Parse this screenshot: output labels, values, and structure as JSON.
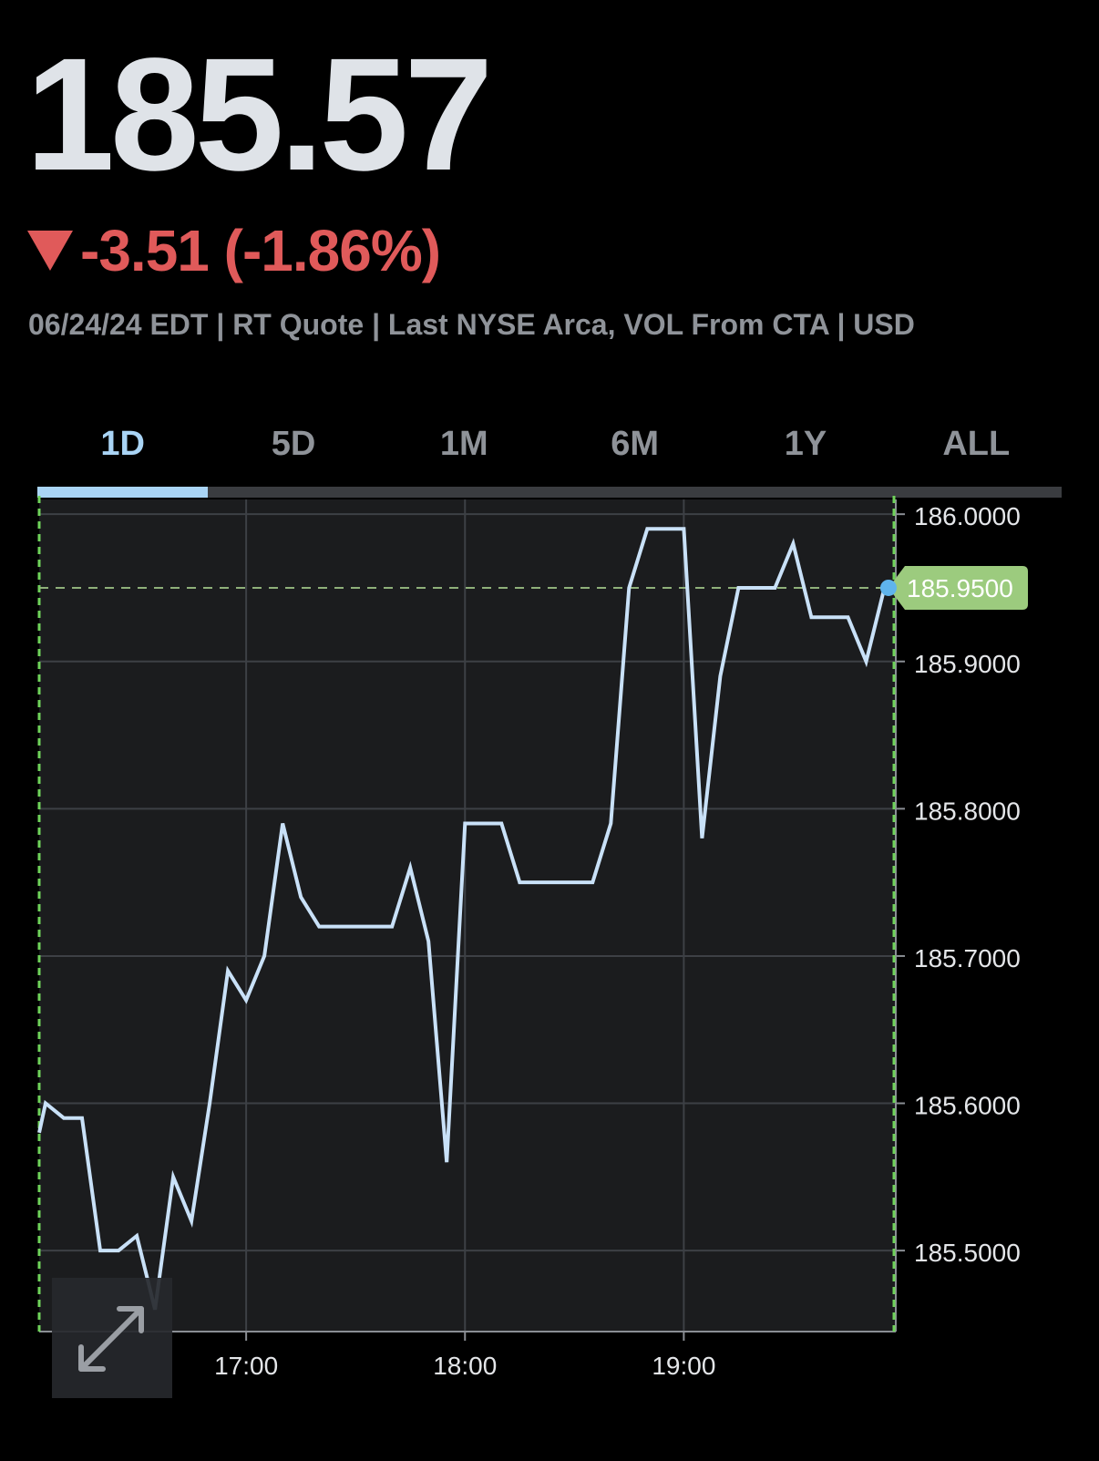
{
  "quote": {
    "price": "185.57",
    "change": "-3.51 (-1.86%)",
    "meta": "06/24/24 EDT | RT Quote | Last NYSE Arca, VOL From CTA | USD"
  },
  "tabs": [
    {
      "label": "1D",
      "active": true
    },
    {
      "label": "5D",
      "active": false
    },
    {
      "label": "1M",
      "active": false
    },
    {
      "label": "6M",
      "active": false
    },
    {
      "label": "1Y",
      "active": false
    },
    {
      "label": "ALL",
      "active": false
    }
  ],
  "colors": {
    "line": "#c9e1f8",
    "down": "#e05a5a",
    "tab_active": "#a9d4f5",
    "last_price_badge": "#9ccb7e",
    "range_marker": "#6fd35a"
  },
  "expand_icon": "expand-arrows-icon",
  "chart_data": {
    "type": "line",
    "last_price": 185.95,
    "last_price_label": "185.9500",
    "ylim": [
      185.445,
      186.01
    ],
    "y_ticks": [
      186.0,
      185.9,
      185.8,
      185.7,
      185.6,
      185.5
    ],
    "y_tick_labels": [
      "186.0000",
      "185.9000",
      "185.8000",
      "185.7000",
      "185.6000",
      "185.5000"
    ],
    "x_range_minutes": [
      16.0541,
      19.9688
    ],
    "x_ticks": [
      17,
      18,
      19
    ],
    "x_tick_labels": [
      "17:00",
      "18:00",
      "19:00"
    ],
    "grid": true,
    "series": [
      {
        "x": [
          16.0541,
          16.0833,
          16.1667,
          16.25,
          16.3333,
          16.4167,
          16.5,
          16.5833,
          16.6667,
          16.75,
          16.8333,
          16.9167,
          17.0,
          17.0833,
          17.1667,
          17.25,
          17.3333,
          17.4167,
          17.5,
          17.5833,
          17.6667,
          17.75,
          17.8333,
          17.9167,
          18.0,
          18.0833,
          18.1667,
          18.25,
          18.3333,
          18.4167,
          18.5,
          18.5833,
          18.6667,
          18.75,
          18.8333,
          18.9167,
          19.0,
          19.0833,
          19.1667,
          19.25,
          19.3333,
          19.4167,
          19.5,
          19.5833,
          19.6667,
          19.75,
          19.8333,
          19.9167,
          19.9688
        ],
        "y": [
          185.58,
          185.6,
          185.59,
          185.59,
          185.5,
          185.5,
          185.51,
          185.46,
          185.55,
          185.52,
          185.6,
          185.69,
          185.67,
          185.7,
          185.79,
          185.74,
          185.72,
          185.72,
          185.72,
          185.72,
          185.72,
          185.76,
          185.71,
          185.56,
          185.79,
          185.79,
          185.79,
          185.75,
          185.75,
          185.75,
          185.75,
          185.75,
          185.79,
          185.95,
          185.99,
          185.99,
          185.99,
          185.78,
          185.89,
          185.95,
          185.95,
          185.95,
          185.98,
          185.93,
          185.93,
          185.93,
          185.9,
          185.95,
          185.95
        ]
      }
    ]
  }
}
